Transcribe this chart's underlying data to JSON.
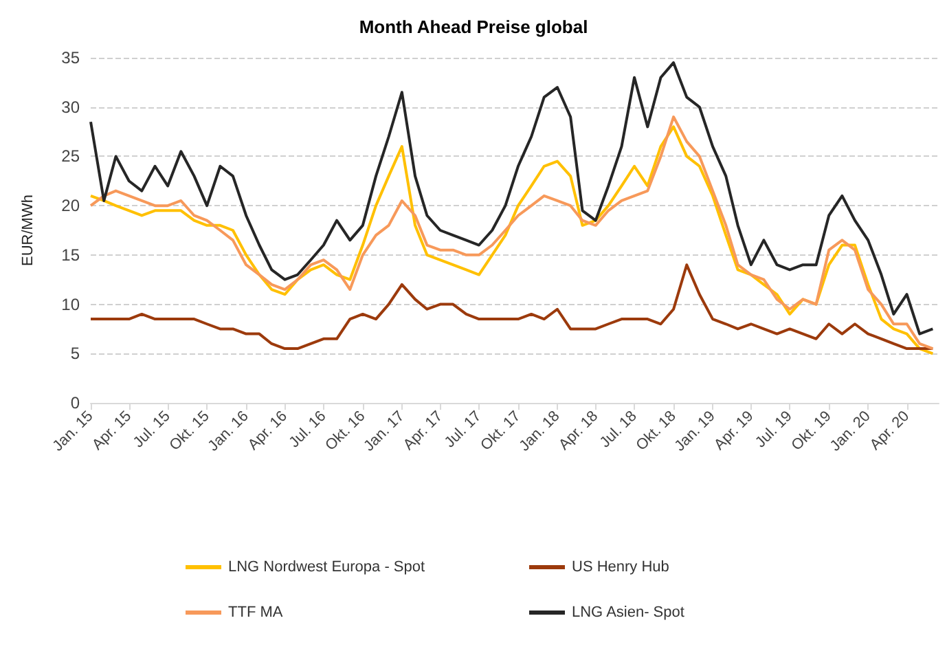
{
  "chart_data": {
    "type": "line",
    "title": "Month Ahead Preise global",
    "ylabel": "EUR/MWh",
    "x": [
      "2015-01",
      "2015-02",
      "2015-03",
      "2015-04",
      "2015-05",
      "2015-06",
      "2015-07",
      "2015-08",
      "2015-09",
      "2015-10",
      "2015-11",
      "2015-12",
      "2016-01",
      "2016-02",
      "2016-03",
      "2016-04",
      "2016-05",
      "2016-06",
      "2016-07",
      "2016-08",
      "2016-09",
      "2016-10",
      "2016-11",
      "2016-12",
      "2017-01",
      "2017-02",
      "2017-03",
      "2017-04",
      "2017-05",
      "2017-06",
      "2017-07",
      "2017-08",
      "2017-09",
      "2017-10",
      "2017-11",
      "2017-12",
      "2018-01",
      "2018-02",
      "2018-03",
      "2018-04",
      "2018-05",
      "2018-06",
      "2018-07",
      "2018-08",
      "2018-09",
      "2018-10",
      "2018-11",
      "2018-12",
      "2019-01",
      "2019-02",
      "2019-03",
      "2019-04",
      "2019-05",
      "2019-06",
      "2019-07",
      "2019-08",
      "2019-09",
      "2019-10",
      "2019-11",
      "2019-12",
      "2020-01",
      "2020-02",
      "2020-03",
      "2020-04",
      "2020-05",
      "2020-06"
    ],
    "series": [
      {
        "name": "LNG Nordwest Europa - Spot",
        "color": "#ffc000",
        "values": [
          21,
          20.5,
          20,
          19.5,
          19,
          19.5,
          19.5,
          19.5,
          18.5,
          18,
          18,
          17.5,
          15,
          13,
          11.5,
          11,
          12.5,
          13.5,
          14,
          13,
          12.5,
          16,
          20,
          23,
          26,
          18,
          15,
          14.5,
          14,
          13.5,
          13,
          15,
          17,
          20,
          22,
          24,
          24.5,
          23,
          18,
          18.5,
          20,
          22,
          24,
          22,
          26,
          28,
          25,
          24,
          21,
          17,
          13.5,
          13,
          12,
          11,
          9,
          10.5,
          10,
          14,
          16,
          16,
          12,
          8.5,
          7.5,
          7,
          5.5,
          5
        ]
      },
      {
        "name": "US Henry Hub",
        "color": "#9c3a0c",
        "values": [
          8.5,
          8.5,
          8.5,
          8.5,
          9,
          8.5,
          8.5,
          8.5,
          8.5,
          8,
          7.5,
          7.5,
          7,
          7,
          6,
          5.5,
          5.5,
          6,
          6.5,
          6.5,
          8.5,
          9,
          8.5,
          10,
          12,
          10.5,
          9.5,
          10,
          10,
          9,
          8.5,
          8.5,
          8.5,
          8.5,
          9,
          8.5,
          9.5,
          7.5,
          7.5,
          7.5,
          8,
          8.5,
          8.5,
          8.5,
          8,
          9.5,
          14,
          11,
          8.5,
          8,
          7.5,
          8,
          7.5,
          7,
          7.5,
          7,
          6.5,
          8,
          7,
          8,
          7,
          6.5,
          6,
          5.5,
          5.5,
          5.5
        ]
      },
      {
        "name": "TTF MA",
        "color": "#f7995a",
        "values": [
          20,
          21,
          21.5,
          21,
          20.5,
          20,
          20,
          20.5,
          19,
          18.5,
          17.5,
          16.5,
          14,
          13,
          12,
          11.5,
          12.5,
          14,
          14.5,
          13.5,
          11.5,
          15,
          17,
          18,
          20.5,
          19,
          16,
          15.5,
          15.5,
          15,
          15,
          16,
          17.5,
          19,
          20,
          21,
          20.5,
          20,
          18.5,
          18,
          19.5,
          20.5,
          21,
          21.5,
          25,
          29,
          26.5,
          25,
          21.5,
          18,
          14,
          13,
          12.5,
          10.5,
          9.5,
          10.5,
          10,
          15.5,
          16.5,
          15.5,
          11.5,
          10,
          8,
          8,
          6,
          5.5
        ]
      },
      {
        "name": "LNG Asien- Spot",
        "color": "#262626",
        "values": [
          28.5,
          20.5,
          25,
          22.5,
          21.5,
          24,
          22,
          25.5,
          23,
          20,
          24,
          23,
          19,
          16,
          13.5,
          12.5,
          13,
          14.5,
          16,
          18.5,
          16.5,
          18,
          23,
          27,
          31.5,
          23,
          19,
          17.5,
          17,
          16.5,
          16,
          17.5,
          20,
          24,
          27,
          31,
          32,
          29,
          19.5,
          18.5,
          22,
          26,
          33,
          28,
          33,
          34.5,
          31,
          30,
          26,
          23,
          18,
          14,
          16.5,
          14,
          13.5,
          14,
          14,
          19,
          21,
          18.5,
          16.5,
          13,
          9,
          11,
          7,
          7.5
        ]
      }
    ],
    "xlim": [
      "2015-01",
      "2020-06-15"
    ],
    "xticks": [
      {
        "value": "2015-01",
        "label": "Jan. 15"
      },
      {
        "value": "2015-04",
        "label": "Apr. 15"
      },
      {
        "value": "2015-07",
        "label": "Jul. 15"
      },
      {
        "value": "2015-10",
        "label": "Okt. 15"
      },
      {
        "value": "2016-01",
        "label": "Jan. 16"
      },
      {
        "value": "2016-04",
        "label": "Apr. 16"
      },
      {
        "value": "2016-07",
        "label": "Jul. 16"
      },
      {
        "value": "2016-10",
        "label": "Okt. 16"
      },
      {
        "value": "2017-01",
        "label": "Jan. 17"
      },
      {
        "value": "2017-04",
        "label": "Apr. 17"
      },
      {
        "value": "2017-07",
        "label": "Jul. 17"
      },
      {
        "value": "2017-10",
        "label": "Okt. 17"
      },
      {
        "value": "2018-01",
        "label": "Jan. 18"
      },
      {
        "value": "2018-04",
        "label": "Apr. 18"
      },
      {
        "value": "2018-07",
        "label": "Jul. 18"
      },
      {
        "value": "2018-10",
        "label": "Okt. 18"
      },
      {
        "value": "2019-01",
        "label": "Jan. 19"
      },
      {
        "value": "2019-04",
        "label": "Apr. 19"
      },
      {
        "value": "2019-07",
        "label": "Jul. 19"
      },
      {
        "value": "2019-10",
        "label": "Okt. 19"
      },
      {
        "value": "2020-01",
        "label": "Jan. 20"
      },
      {
        "value": "2020-04",
        "label": "Apr. 20"
      }
    ],
    "ylim": [
      0,
      35
    ],
    "yticks": [
      0,
      5,
      10,
      15,
      20,
      25,
      30,
      35
    ],
    "grid": "y",
    "legend": "bottom",
    "marker": "none",
    "line_style": "solid"
  }
}
